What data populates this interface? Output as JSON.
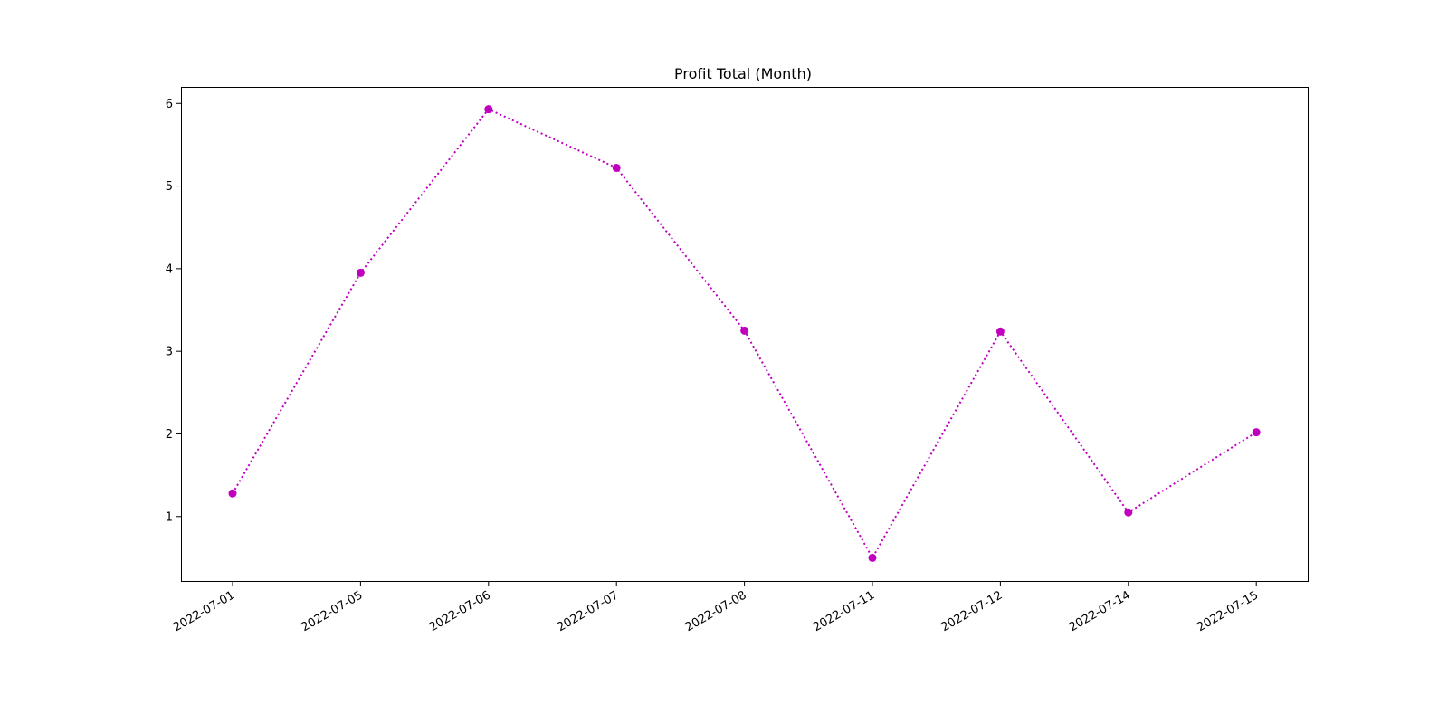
{
  "chart_data": {
    "type": "line",
    "title": "Profit Total (Month)",
    "xlabel": "",
    "ylabel": "",
    "x": [
      "2022-07-01",
      "2022-07-05",
      "2022-07-06",
      "2022-07-07",
      "2022-07-08",
      "2022-07-11",
      "2022-07-12",
      "2022-07-14",
      "2022-07-15"
    ],
    "series": [
      {
        "values": [
          1.28,
          3.95,
          5.93,
          5.22,
          3.25,
          0.5,
          3.24,
          1.05,
          2.02
        ],
        "color": "#bf00bf",
        "line_style": "dotted",
        "marker": "circle"
      }
    ],
    "y_ticks": [
      1,
      2,
      3,
      4,
      5,
      6
    ],
    "ylim": [
      0.22,
      6.2
    ],
    "grid": false,
    "legend": "none"
  }
}
